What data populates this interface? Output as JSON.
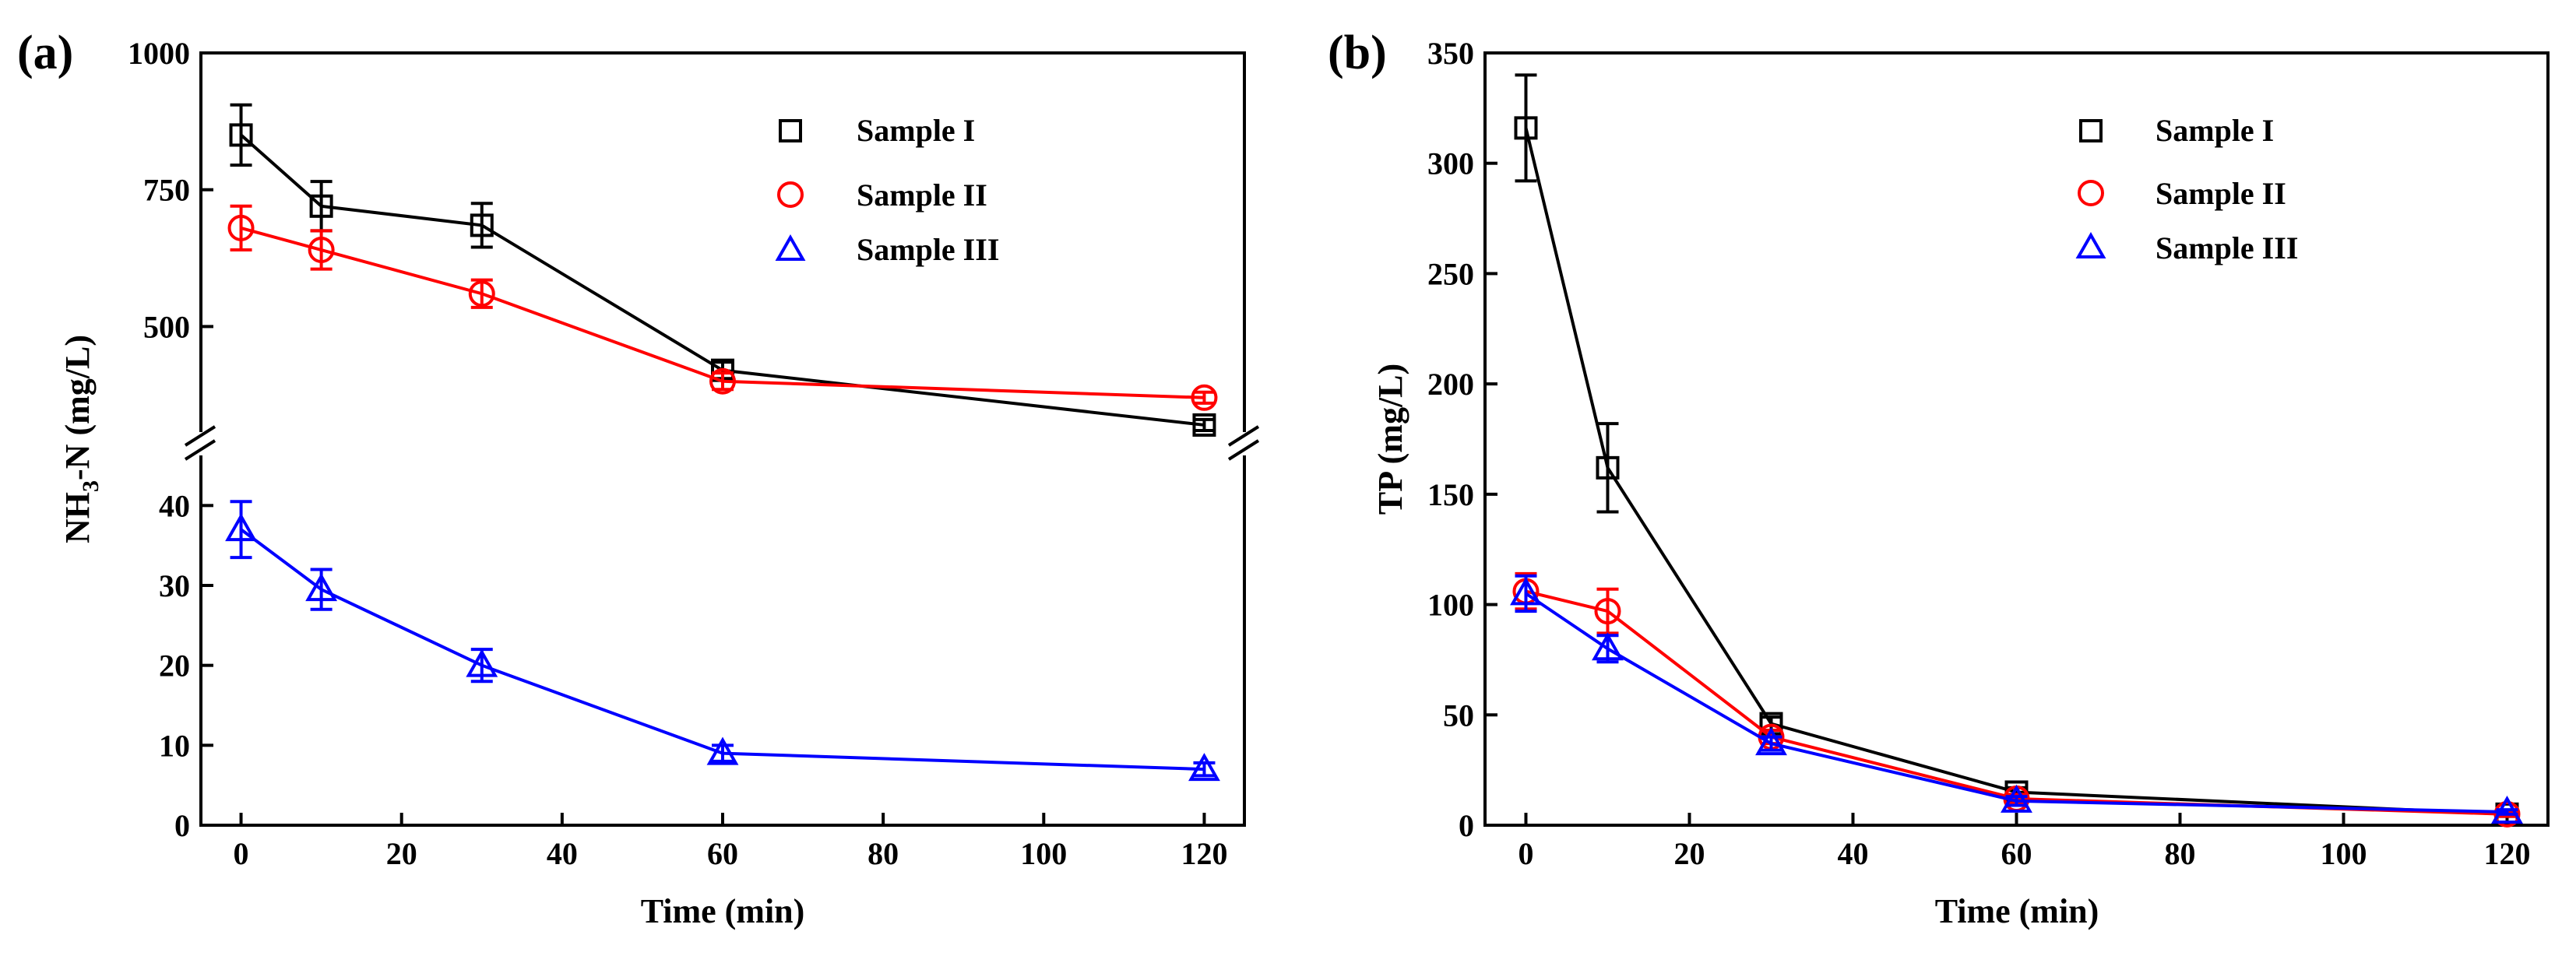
{
  "colors": {
    "sample_1": "#000000",
    "sample_2": "#ff0000",
    "sample_3": "#0000ff"
  },
  "chart_data": [
    {
      "type": "line",
      "panel_label": "(a)",
      "xlabel": "Time (min)",
      "ylabel_main": "NH",
      "ylabel_sub": "3",
      "ylabel_tail": "-N (mg/L)",
      "axis_break": true,
      "xlim": [
        -5,
        125
      ],
      "x_ticks": [
        0,
        20,
        40,
        60,
        80,
        100,
        120
      ],
      "x_tick_labels": [
        "0",
        "20",
        "40",
        "60",
        "80",
        "100",
        "120"
      ],
      "y_segments": [
        {
          "name": "lower",
          "ylim": [
            0,
            45
          ],
          "ticks": [
            0,
            10,
            20,
            30,
            40
          ],
          "tick_labels": [
            "0",
            "10",
            "20",
            "30",
            "40"
          ]
        },
        {
          "name": "upper",
          "ylim": [
            300,
            1000
          ],
          "ticks": [
            500,
            750,
            1000
          ],
          "tick_labels": [
            "500",
            "750",
            "1000"
          ]
        }
      ],
      "legend": {
        "position": "top-right",
        "entries": [
          "Sample I",
          "Sample II",
          "Sample III"
        ]
      },
      "series": [
        {
          "name": "Sample I",
          "marker": "square",
          "color": "#000000",
          "segment": "upper",
          "x": [
            0,
            10,
            30,
            60,
            120
          ],
          "y": [
            850,
            720,
            685,
            420,
            320
          ],
          "err": [
            55,
            45,
            40,
            15,
            10
          ]
        },
        {
          "name": "Sample II",
          "marker": "circle",
          "color": "#ff0000",
          "segment": "upper",
          "x": [
            0,
            10,
            30,
            60,
            120
          ],
          "y": [
            680,
            640,
            560,
            400,
            370
          ],
          "err": [
            40,
            35,
            25,
            15,
            10
          ]
        },
        {
          "name": "Sample III",
          "marker": "triangle",
          "color": "#0000ff",
          "segment": "lower",
          "x": [
            0,
            10,
            30,
            60,
            120
          ],
          "y": [
            37,
            29.5,
            20,
            9,
            7
          ],
          "err": [
            3.5,
            2.5,
            2,
            1,
            0.8
          ]
        }
      ]
    },
    {
      "type": "line",
      "panel_label": "(b)",
      "xlabel": "Time (min)",
      "ylabel": "TP (mg/L)",
      "xlim": [
        -5,
        125
      ],
      "ylim": [
        0,
        350
      ],
      "x_ticks": [
        0,
        20,
        40,
        60,
        80,
        100,
        120
      ],
      "x_tick_labels": [
        "0",
        "20",
        "40",
        "60",
        "80",
        "100",
        "120"
      ],
      "y_ticks": [
        0,
        50,
        100,
        150,
        200,
        250,
        300,
        350
      ],
      "y_tick_labels": [
        "0",
        "50",
        "100",
        "150",
        "200",
        "250",
        "300",
        "350"
      ],
      "legend": {
        "position": "top-right",
        "entries": [
          "Sample I",
          "Sample II",
          "Sample III"
        ]
      },
      "series": [
        {
          "name": "Sample I",
          "marker": "square",
          "color": "#000000",
          "x": [
            0,
            10,
            30,
            60,
            120
          ],
          "y": [
            316,
            162,
            46,
            15,
            5
          ],
          "err": [
            24,
            20,
            3,
            2,
            1
          ]
        },
        {
          "name": "Sample II",
          "marker": "circle",
          "color": "#ff0000",
          "x": [
            0,
            10,
            30,
            60,
            120
          ],
          "y": [
            106,
            97,
            40,
            12,
            5
          ],
          "err": [
            8,
            10,
            3,
            2,
            1
          ]
        },
        {
          "name": "Sample III",
          "marker": "triangle",
          "color": "#0000ff",
          "x": [
            0,
            10,
            30,
            60,
            120
          ],
          "y": [
            105,
            80,
            37,
            11,
            6
          ],
          "err": [
            8,
            6,
            3,
            2,
            1
          ]
        }
      ]
    }
  ]
}
